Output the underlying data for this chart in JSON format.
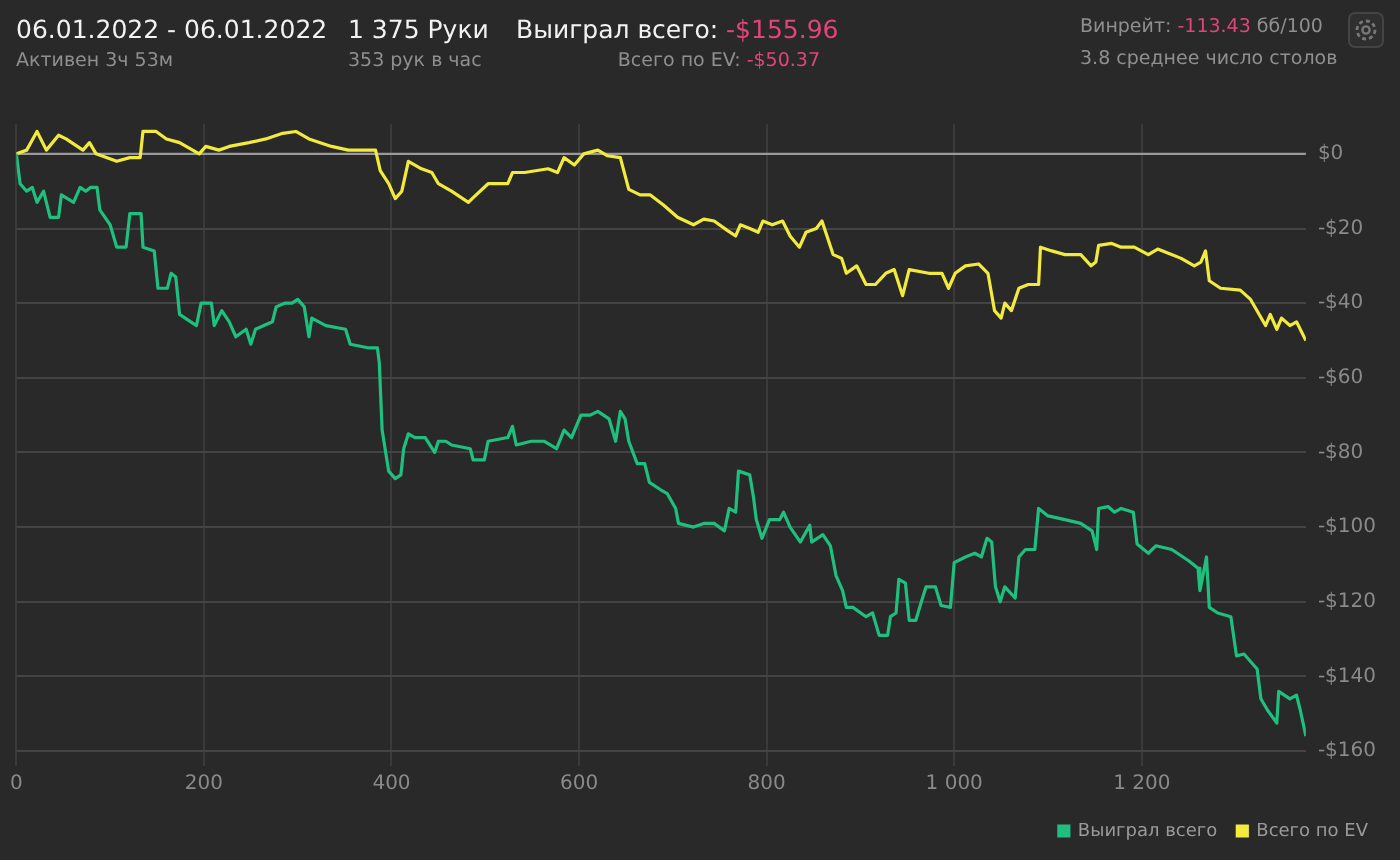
{
  "chart_data": {
    "type": "line",
    "title": "06.01.2022 - 06.01.2022",
    "subtitle": "Активен 3ч 53м",
    "annotations": [
      "1 375 Руки",
      "353 рук в час",
      "Выиграл всего:",
      "-$155.96",
      "Всего по EV:",
      "-$50.37",
      "Винрейт:",
      "-113.43",
      "бб/100",
      "3.8 среднее число столов"
    ],
    "xlim": [
      0,
      1375
    ],
    "xticks": [
      0,
      200,
      400,
      600,
      800,
      {
        "value": 1000,
        "label": "1 000"
      },
      {
        "value": 1200,
        "label": "1 200"
      }
    ],
    "ylim": [
      -164,
      8
    ],
    "yticks": [
      {
        "value": -160,
        "label": "-$160"
      },
      {
        "value": -140,
        "label": "-$140"
      },
      {
        "value": -120,
        "label": "-$120"
      },
      {
        "value": -100,
        "label": "-$100"
      },
      {
        "value": -80,
        "label": "-$80"
      },
      {
        "value": -60,
        "label": "-$60"
      },
      {
        "value": -40,
        "label": "-$40"
      },
      {
        "value": -20,
        "label": "-$20"
      },
      {
        "value": 0,
        "label": "$0"
      }
    ],
    "grid": true,
    "legend": "bottom",
    "marker": "none",
    "line_style": "solid",
    "ref_lines": [
      {
        "axis": "y",
        "value": 0,
        "color": "#9a9a9a"
      }
    ],
    "series": [
      {
        "name": "Выиграл всего",
        "color": "#1fbf7f",
        "x": [
          0,
          4,
          11,
          17,
          22,
          29,
          36,
          45,
          48,
          61,
          68,
          74,
          79,
          86,
          89,
          100,
          107,
          117,
          121,
          133,
          135,
          147,
          151,
          161,
          165,
          170,
          174,
          192,
          197,
          208,
          211,
          219,
          227,
          234,
          245,
          250,
          255,
          273,
          277,
          286,
          294,
          300,
          307,
          312,
          315,
          330,
          351,
          356,
          376,
          385,
          387,
          390,
          397,
          404,
          410,
          413,
          418,
          425,
          436,
          446,
          450,
          458,
          464,
          484,
          487,
          499,
          503,
          524,
          529,
          533,
          549,
          563,
          576,
          584,
          592,
          602,
          612,
          620,
          632,
          639,
          644,
          649,
          653,
          662,
          670,
          675,
          687,
          694,
          703,
          706,
          722,
          733,
          744,
          755,
          760,
          767,
          770,
          782,
          786,
          789,
          795,
          803,
          814,
          818,
          825,
          836,
          846,
          848,
          860,
          868,
          874,
          881,
          885,
          892,
          906,
          913,
          920,
          929,
          932,
          938,
          941,
          948,
          952,
          959,
          965,
          970,
          980,
          986,
          996,
          1000,
          1012,
          1022,
          1029,
          1035,
          1040,
          1044,
          1049,
          1054,
          1065,
          1069,
          1076,
          1086,
          1090,
          1100,
          1118,
          1135,
          1147,
          1152,
          1154,
          1164,
          1171,
          1178,
          1191,
          1195,
          1207,
          1215,
          1232,
          1250,
          1260,
          1262,
          1266,
          1269,
          1272,
          1281,
          1295,
          1301,
          1309,
          1323,
          1327,
          1334,
          1344,
          1346,
          1358,
          1365,
          1369,
          1375
        ],
        "values": [
          0,
          -8,
          -10,
          -9,
          -13,
          -10,
          -17,
          -17,
          -11,
          -13,
          -9,
          -10,
          -9,
          -9,
          -15,
          -19,
          -25,
          -25,
          -16,
          -16,
          -25,
          -26,
          -36,
          -36,
          -32,
          -33,
          -43,
          -46,
          -40,
          -40,
          -46,
          -42,
          -45,
          -49,
          -47,
          -51,
          -47,
          -45,
          -41,
          -40,
          -40,
          -39,
          -41,
          -49,
          -44,
          -46,
          -47,
          -51,
          -52,
          -52,
          -56,
          -74,
          -85,
          -87,
          -86,
          -79,
          -75,
          -76,
          -76,
          -80,
          -77,
          -77,
          -78,
          -79,
          -82,
          -82,
          -77,
          -76,
          -73,
          -78,
          -77,
          -77,
          -79,
          -74,
          -76,
          -70,
          -70,
          -69,
          -71,
          -77,
          -69,
          -71,
          -77,
          -83,
          -83,
          -88,
          -90,
          -91,
          -95,
          -99,
          -100,
          -99,
          -99,
          -101,
          -95,
          -96,
          -85,
          -86,
          -92,
          -98,
          -103,
          -98,
          -98,
          -96,
          -100,
          -104,
          -99.5,
          -104,
          -102,
          -105,
          -113,
          -117,
          -121.5,
          -121.5,
          -124,
          -123,
          -129,
          -129,
          -124,
          -123,
          -114,
          -115,
          -125,
          -125,
          -120,
          -116,
          -116,
          -121,
          -121.5,
          -109.5,
          -108,
          -107,
          -108,
          -103,
          -104,
          -116,
          -120,
          -116,
          -119,
          -108,
          -106,
          -106,
          -95,
          -97,
          -98,
          -99,
          -101,
          -106,
          -95,
          -94.5,
          -96,
          -95,
          -96,
          -104.5,
          -107,
          -105,
          -106,
          -109,
          -111,
          -117,
          -112,
          -108,
          -121.5,
          -123,
          -124,
          -134.5,
          -134,
          -138,
          -146,
          -149,
          -152.5,
          -144,
          -146,
          -145,
          -149,
          -156
        ]
      },
      {
        "name": "Всего по EV",
        "color": "#f2ea3c",
        "x": [
          0,
          11,
          22,
          32,
          45,
          53,
          71,
          78,
          85,
          107,
          121,
          132,
          135,
          149,
          160,
          174,
          195,
          202,
          216,
          227,
          248,
          266,
          284,
          298,
          312,
          336,
          354,
          376,
          383,
          388,
          397,
          404,
          411,
          418,
          432,
          443,
          450,
          464,
          482,
          486,
          503,
          524,
          529,
          542,
          567,
          577,
          584,
          595,
          605,
          620,
          630,
          644,
          653,
          665,
          676,
          690,
          705,
          722,
          733,
          744,
          758,
          767,
          772,
          782,
          791,
          796,
          806,
          817,
          825,
          835,
          842,
          853,
          859,
          863,
          871,
          880,
          885,
          896,
          906,
          916,
          927,
          936,
          945,
          952,
          973,
          987,
          994,
          1001,
          1012,
          1026,
          1036,
          1043,
          1050,
          1054,
          1061,
          1069,
          1079,
          1090,
          1092,
          1104,
          1118,
          1135,
          1146,
          1151,
          1154,
          1168,
          1178,
          1192,
          1207,
          1217,
          1242,
          1256,
          1263,
          1268,
          1272,
          1284,
          1305,
          1316,
          1332,
          1337,
          1344,
          1349,
          1358,
          1365,
          1375
        ],
        "values": [
          0,
          1,
          6,
          1,
          5,
          4,
          1,
          3,
          0,
          -2,
          -1,
          -1,
          6,
          6,
          4,
          3,
          0,
          2,
          1,
          2,
          3,
          4,
          5.5,
          6,
          4,
          2,
          1,
          1,
          1,
          -4.5,
          -8,
          -12,
          -10,
          -2,
          -4,
          -5,
          -8,
          -10,
          -13,
          -12,
          -8,
          -8,
          -5,
          -5,
          -4,
          -5,
          -1,
          -3,
          0,
          1,
          -0.5,
          -1,
          -9.5,
          -11,
          -11,
          -13.7,
          -17,
          -19,
          -17.5,
          -18,
          -20.5,
          -22,
          -19,
          -20,
          -21,
          -18,
          -19,
          -18,
          -22,
          -25,
          -21,
          -20,
          -18,
          -21,
          -27,
          -28,
          -32,
          -30,
          -35,
          -35,
          -32,
          -31,
          -38,
          -31,
          -32,
          -32,
          -36,
          -32,
          -30,
          -29.5,
          -32,
          -42,
          -44,
          -40,
          -42,
          -36,
          -35,
          -35,
          -25,
          -26,
          -27,
          -27,
          -30,
          -29,
          -24.5,
          -24,
          -25,
          -25,
          -27,
          -25.5,
          -28,
          -30,
          -29,
          -26,
          -34,
          -36,
          -36.5,
          -39,
          -46,
          -43,
          -47,
          -44,
          -46,
          -45,
          -50
        ]
      }
    ]
  }
}
